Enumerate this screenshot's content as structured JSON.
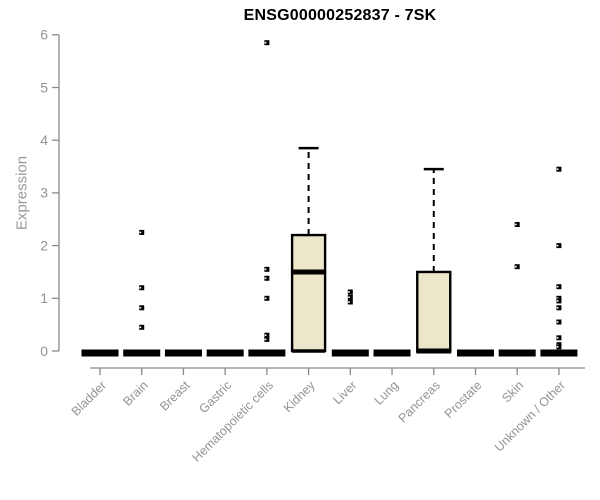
{
  "chart_data": {
    "type": "box",
    "title": "ENSG00000252837 - 7SK",
    "xlabel": "",
    "ylabel": "Expression",
    "ylim": [
      0,
      6
    ],
    "yticks": [
      0,
      1,
      2,
      3,
      4,
      5,
      6
    ],
    "grid": false,
    "legend": null,
    "categories": [
      "Bladder",
      "Brain",
      "Breast",
      "Gastric",
      "Hematopoietic cells",
      "Kidney",
      "Liver",
      "Lung",
      "Pancreas",
      "Prostate",
      "Skin",
      "Unknown / Other"
    ],
    "boxes": [
      {
        "category": "Bladder",
        "q1": 0,
        "median": 0,
        "q3": 0,
        "whisker_low": 0,
        "whisker_high": 0,
        "outliers": []
      },
      {
        "category": "Brain",
        "q1": 0,
        "median": 0,
        "q3": 0,
        "whisker_low": 0,
        "whisker_high": 0,
        "outliers": [
          2.25,
          1.2,
          0.82,
          0.45
        ]
      },
      {
        "category": "Breast",
        "q1": 0,
        "median": 0,
        "q3": 0,
        "whisker_low": 0,
        "whisker_high": 0,
        "outliers": []
      },
      {
        "category": "Gastric",
        "q1": 0,
        "median": 0,
        "q3": 0,
        "whisker_low": 0,
        "whisker_high": 0,
        "outliers": []
      },
      {
        "category": "Hematopoietic cells",
        "q1": 0,
        "median": 0,
        "q3": 0,
        "whisker_low": 0,
        "whisker_high": 0,
        "outliers": [
          5.85,
          1.55,
          1.38,
          1.0,
          0.3,
          0.22
        ]
      },
      {
        "category": "Kidney",
        "q1": 0,
        "median": 1.5,
        "q3": 2.2,
        "whisker_low": 0,
        "whisker_high": 3.85,
        "outliers": []
      },
      {
        "category": "Liver",
        "q1": 0,
        "median": 0,
        "q3": 0,
        "whisker_low": 0,
        "whisker_high": 0,
        "outliers": [
          1.12,
          1.02,
          0.93
        ]
      },
      {
        "category": "Lung",
        "q1": 0,
        "median": 0,
        "q3": 0,
        "whisker_low": 0,
        "whisker_high": 0,
        "outliers": []
      },
      {
        "category": "Pancreas",
        "q1": 0,
        "median": 0,
        "q3": 1.5,
        "whisker_low": 0,
        "whisker_high": 3.45,
        "outliers": []
      },
      {
        "category": "Prostate",
        "q1": 0,
        "median": 0,
        "q3": 0,
        "whisker_low": 0,
        "whisker_high": 0,
        "outliers": []
      },
      {
        "category": "Skin",
        "q1": 0,
        "median": 0,
        "q3": 0,
        "whisker_low": 0,
        "whisker_high": 0,
        "outliers": [
          2.4,
          1.6
        ]
      },
      {
        "category": "Unknown / Other",
        "q1": 0,
        "median": 0,
        "q3": 0,
        "whisker_low": 0,
        "whisker_high": 0,
        "outliers": [
          3.45,
          2.0,
          1.22,
          1.0,
          0.95,
          0.82,
          0.55,
          0.25,
          0.12,
          0.08
        ]
      }
    ],
    "colors": {
      "box_fill": "#ECE6CB",
      "box_border": "#000000",
      "median": "#000000",
      "whisker": "#000000",
      "outlier": "#000000",
      "axis": "#8a8a8a",
      "tick_label": "#949494",
      "title": "#000000"
    }
  }
}
